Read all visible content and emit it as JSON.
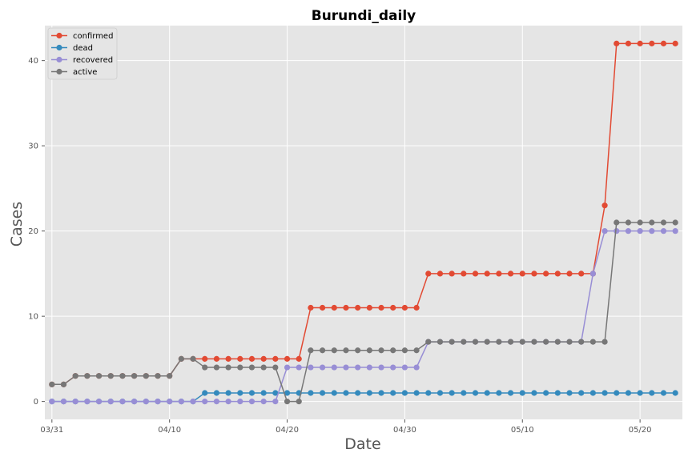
{
  "chart_data": {
    "type": "line",
    "title": "Burundi_daily",
    "xlabel": "Date",
    "ylabel": "Cases",
    "x_start": "03/31",
    "x_ticks": [
      "03/31",
      "04/10",
      "04/20",
      "04/30",
      "05/10",
      "05/20"
    ],
    "y_ticks": [
      0,
      10,
      20,
      30,
      40
    ],
    "ylim": [
      -2.1,
      44.1
    ],
    "grid": true,
    "legend_position": "upper-left",
    "series": [
      {
        "name": "confirmed",
        "color": "#E24A33",
        "values": [
          2,
          2,
          3,
          3,
          3,
          3,
          3,
          3,
          3,
          3,
          3,
          5,
          5,
          5,
          5,
          5,
          5,
          5,
          5,
          5,
          5,
          5,
          11,
          11,
          11,
          11,
          11,
          11,
          11,
          11,
          11,
          11,
          15,
          15,
          15,
          15,
          15,
          15,
          15,
          15,
          15,
          15,
          15,
          15,
          15,
          15,
          15,
          23,
          42,
          42,
          42,
          42,
          42,
          42
        ]
      },
      {
        "name": "dead",
        "color": "#348ABD",
        "values": [
          0,
          0,
          0,
          0,
          0,
          0,
          0,
          0,
          0,
          0,
          0,
          0,
          0,
          1,
          1,
          1,
          1,
          1,
          1,
          1,
          1,
          1,
          1,
          1,
          1,
          1,
          1,
          1,
          1,
          1,
          1,
          1,
          1,
          1,
          1,
          1,
          1,
          1,
          1,
          1,
          1,
          1,
          1,
          1,
          1,
          1,
          1,
          1,
          1,
          1,
          1,
          1,
          1,
          1
        ]
      },
      {
        "name": "recovered",
        "color": "#988ED5",
        "values": [
          0,
          0,
          0,
          0,
          0,
          0,
          0,
          0,
          0,
          0,
          0,
          0,
          0,
          0,
          0,
          0,
          0,
          0,
          0,
          0,
          4,
          4,
          4,
          4,
          4,
          4,
          4,
          4,
          4,
          4,
          4,
          4,
          7,
          7,
          7,
          7,
          7,
          7,
          7,
          7,
          7,
          7,
          7,
          7,
          7,
          7,
          15,
          20,
          20,
          20,
          20,
          20,
          20,
          20
        ]
      },
      {
        "name": "active",
        "color": "#777777",
        "values": [
          2,
          2,
          3,
          3,
          3,
          3,
          3,
          3,
          3,
          3,
          3,
          5,
          5,
          4,
          4,
          4,
          4,
          4,
          4,
          4,
          0,
          0,
          6,
          6,
          6,
          6,
          6,
          6,
          6,
          6,
          6,
          6,
          7,
          7,
          7,
          7,
          7,
          7,
          7,
          7,
          7,
          7,
          7,
          7,
          7,
          7,
          7,
          7,
          21,
          21,
          21,
          21,
          21,
          21
        ]
      }
    ]
  }
}
